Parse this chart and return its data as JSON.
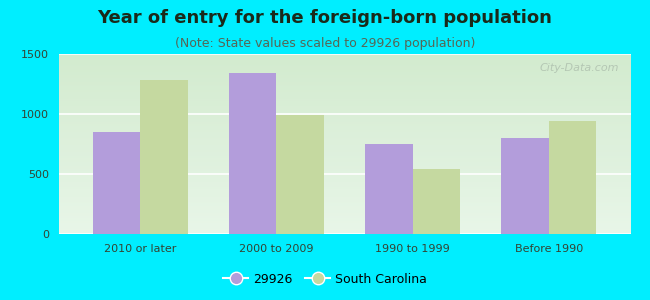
{
  "title": "Year of entry for the foreign-born population",
  "subtitle": "(Note: State values scaled to 29926 population)",
  "categories": [
    "2010 or later",
    "2000 to 2009",
    "1990 to 1999",
    "Before 1990"
  ],
  "series1_label": "29926",
  "series2_label": "South Carolina",
  "series1_values": [
    850,
    1340,
    750,
    800
  ],
  "series2_values": [
    1280,
    990,
    540,
    940
  ],
  "series1_color": "#b39ddb",
  "series2_color": "#c5d9a0",
  "background_outer": "#00eeff",
  "background_inner_top": "#e8f5e0",
  "background_inner_bottom": "#f8fff8",
  "ylim": [
    0,
    1500
  ],
  "yticks": [
    0,
    500,
    1000,
    1500
  ],
  "bar_width": 0.35,
  "title_fontsize": 13,
  "subtitle_fontsize": 9,
  "tick_fontsize": 8,
  "legend_fontsize": 9,
  "watermark": "City-Data.com",
  "title_color": "#1a2a1a",
  "subtitle_color": "#556655",
  "tick_color": "#334433"
}
